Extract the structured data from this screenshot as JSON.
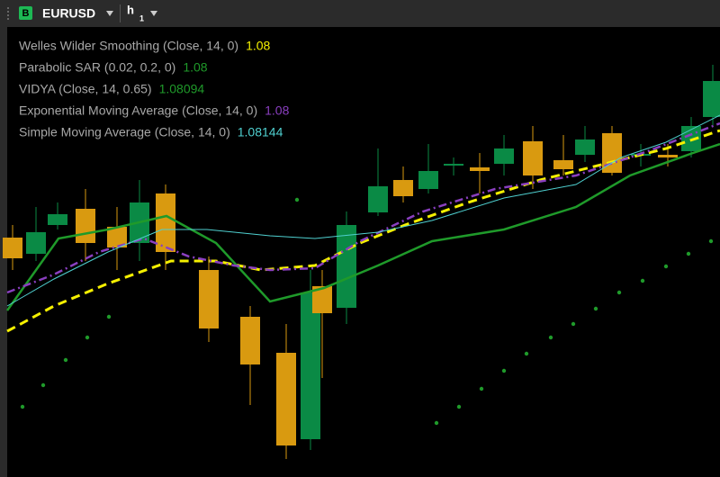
{
  "toolbar": {
    "badge": "B",
    "symbol": "EURUSD",
    "timeframe": "h",
    "timeframe_sub": "1"
  },
  "legend": [
    {
      "name": "Welles Wilder Smoothing (Close, 14, 0)",
      "value": "1.08",
      "color": "#f5f000"
    },
    {
      "name": "Parabolic SAR (0.02, 0.2, 0)",
      "value": "1.08",
      "color": "#1f9a2a"
    },
    {
      "name": "VIDYA (Close, 14, 0.65)",
      "value": "1.08094",
      "color": "#1f9a2a"
    },
    {
      "name": "Exponential Moving Average (Close, 14, 0)",
      "value": "1.08",
      "color": "#8a3fc0"
    },
    {
      "name": "Simple Moving Average (Close, 14, 0)",
      "value": "1.08144",
      "color": "#4fd0d0"
    }
  ]
}
